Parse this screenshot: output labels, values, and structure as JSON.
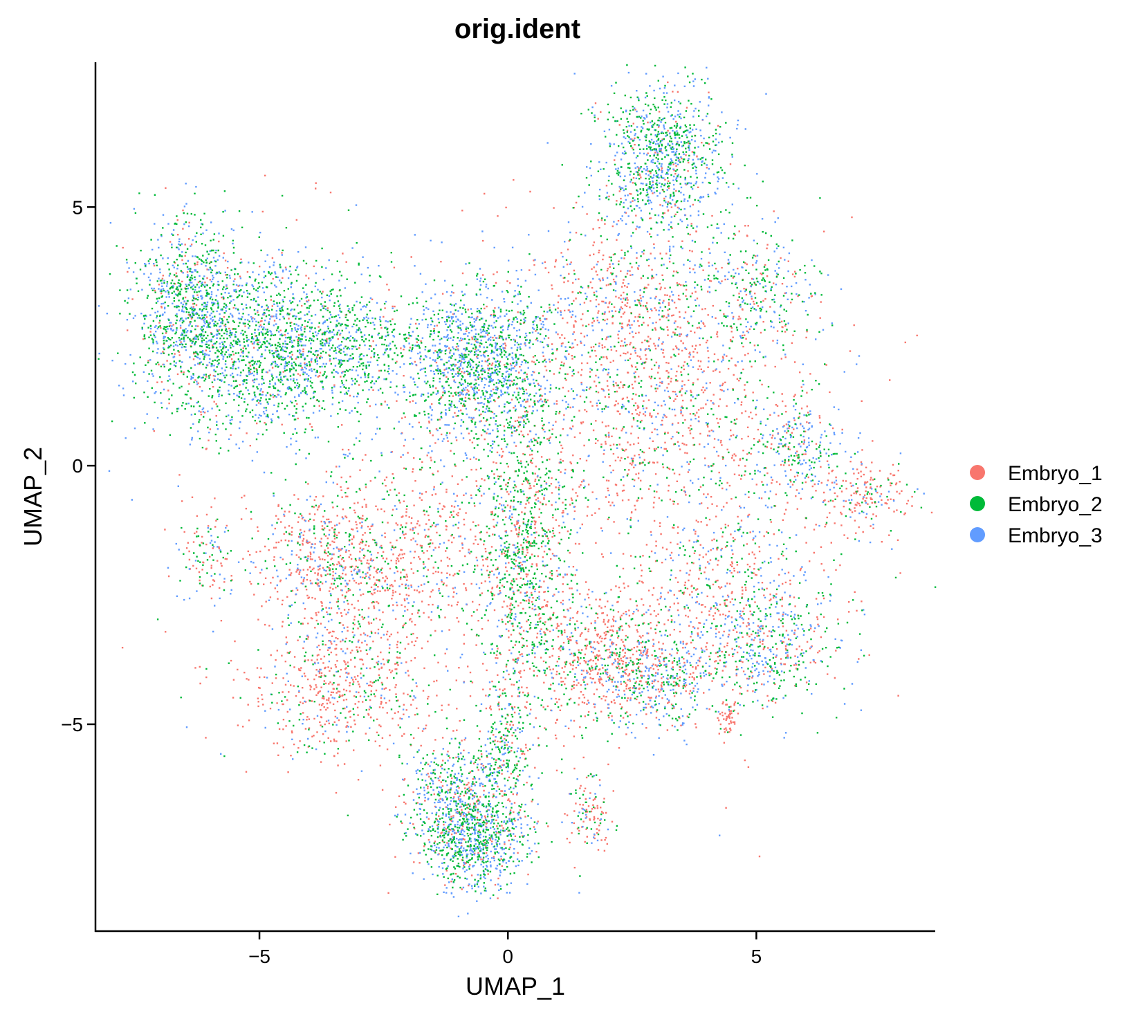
{
  "chart_data": {
    "type": "scatter",
    "title": "orig.ident",
    "xlabel": "UMAP_1",
    "ylabel": "UMAP_2",
    "xlim": [
      -8.3,
      8.6
    ],
    "ylim": [
      -9.0,
      7.8
    ],
    "xticks": [
      -5,
      0,
      5
    ],
    "yticks": [
      -5,
      0,
      5
    ],
    "xtick_labels": [
      "−5",
      "0",
      "5"
    ],
    "ytick_labels": [
      "−5",
      "0",
      "5"
    ],
    "grid": false,
    "legend": "right",
    "series": [
      {
        "name": "Embryo_1",
        "color": "#F8766D"
      },
      {
        "name": "Embryo_2",
        "color": "#00BA38"
      },
      {
        "name": "Embryo_3",
        "color": "#619CFF"
      }
    ],
    "clusters": [
      {
        "x": -5.2,
        "y": 2.3,
        "sx": 1.1,
        "sy": 0.9,
        "n": 1400,
        "mix": [
          0.1,
          0.45,
          0.45
        ]
      },
      {
        "x": -6.4,
        "y": 3.2,
        "sx": 0.55,
        "sy": 0.8,
        "n": 700,
        "mix": [
          0.12,
          0.48,
          0.4
        ]
      },
      {
        "x": -3.6,
        "y": 2.3,
        "sx": 0.9,
        "sy": 0.6,
        "n": 650,
        "mix": [
          0.05,
          0.6,
          0.35
        ]
      },
      {
        "x": -0.6,
        "y": 2.0,
        "sx": 0.75,
        "sy": 0.75,
        "n": 1300,
        "mix": [
          0.08,
          0.4,
          0.52
        ]
      },
      {
        "x": 3.1,
        "y": 5.9,
        "sx": 0.65,
        "sy": 0.75,
        "n": 950,
        "mix": [
          0.08,
          0.47,
          0.45
        ]
      },
      {
        "x": 2.4,
        "y": 3.2,
        "sx": 0.9,
        "sy": 0.8,
        "n": 500,
        "mix": [
          0.6,
          0.2,
          0.2
        ]
      },
      {
        "x": 3.2,
        "y": 1.2,
        "sx": 1.3,
        "sy": 1.2,
        "n": 900,
        "mix": [
          0.6,
          0.2,
          0.2
        ]
      },
      {
        "x": 5.0,
        "y": 3.4,
        "sx": 0.6,
        "sy": 0.6,
        "n": 300,
        "mix": [
          0.2,
          0.45,
          0.35
        ]
      },
      {
        "x": 5.8,
        "y": 0.4,
        "sx": 0.45,
        "sy": 0.5,
        "n": 250,
        "mix": [
          0.2,
          0.4,
          0.4
        ]
      },
      {
        "x": 7.2,
        "y": -0.6,
        "sx": 0.45,
        "sy": 0.35,
        "n": 200,
        "mix": [
          0.7,
          0.15,
          0.15
        ]
      },
      {
        "x": 0.3,
        "y": -1.5,
        "sx": 0.45,
        "sy": 1.5,
        "n": 900,
        "mix": [
          0.3,
          0.55,
          0.15
        ]
      },
      {
        "x": -3.6,
        "y": -1.8,
        "sx": 0.7,
        "sy": 0.7,
        "n": 500,
        "mix": [
          0.6,
          0.2,
          0.2
        ]
      },
      {
        "x": -3.3,
        "y": -4.1,
        "sx": 1.0,
        "sy": 0.8,
        "n": 700,
        "mix": [
          0.65,
          0.2,
          0.15
        ]
      },
      {
        "x": -1.8,
        "y": -1.7,
        "sx": 1.1,
        "sy": 0.9,
        "n": 500,
        "mix": [
          0.6,
          0.25,
          0.15
        ]
      },
      {
        "x": 1.9,
        "y": -3.8,
        "sx": 0.8,
        "sy": 0.6,
        "n": 700,
        "mix": [
          0.6,
          0.25,
          0.15
        ]
      },
      {
        "x": 3.0,
        "y": -4.2,
        "sx": 0.5,
        "sy": 0.5,
        "n": 300,
        "mix": [
          0.25,
          0.35,
          0.4
        ]
      },
      {
        "x": 4.6,
        "y": -2.6,
        "sx": 1.1,
        "sy": 0.9,
        "n": 700,
        "mix": [
          0.45,
          0.3,
          0.25
        ]
      },
      {
        "x": 5.2,
        "y": -3.7,
        "sx": 0.7,
        "sy": 0.5,
        "n": 300,
        "mix": [
          0.15,
          0.4,
          0.45
        ]
      },
      {
        "x": -1.1,
        "y": -6.2,
        "sx": 0.5,
        "sy": 0.45,
        "n": 400,
        "mix": [
          0.2,
          0.4,
          0.4
        ]
      },
      {
        "x": -0.7,
        "y": -7.2,
        "sx": 0.55,
        "sy": 0.5,
        "n": 850,
        "mix": [
          0.12,
          0.43,
          0.45
        ]
      },
      {
        "x": -0.1,
        "y": -5.6,
        "sx": 0.25,
        "sy": 0.8,
        "n": 300,
        "mix": [
          0.25,
          0.5,
          0.25
        ]
      },
      {
        "x": 1.6,
        "y": -6.7,
        "sx": 0.2,
        "sy": 0.4,
        "n": 120,
        "mix": [
          0.6,
          0.25,
          0.15
        ]
      },
      {
        "x": 4.4,
        "y": -4.9,
        "sx": 0.08,
        "sy": 0.2,
        "n": 50,
        "mix": [
          0.9,
          0.05,
          0.05
        ]
      },
      {
        "x": -6.1,
        "y": -1.7,
        "sx": 0.3,
        "sy": 0.4,
        "n": 100,
        "mix": [
          0.4,
          0.4,
          0.2
        ]
      },
      {
        "x": 0.2,
        "y": -0.3,
        "sx": 3.0,
        "sy": 2.5,
        "n": 1000,
        "mix": [
          0.65,
          0.2,
          0.15
        ]
      }
    ]
  }
}
